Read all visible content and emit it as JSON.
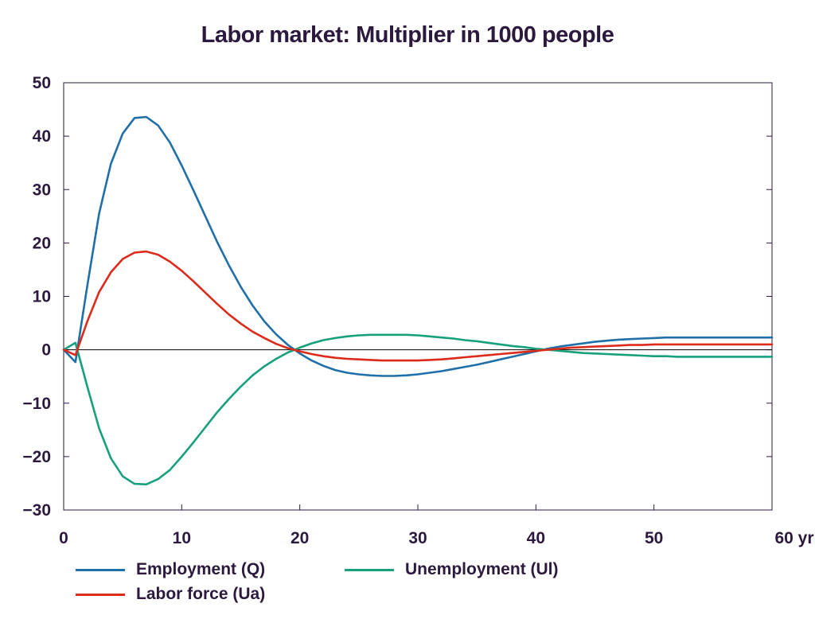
{
  "chart_data": {
    "type": "line",
    "title": "Labor market: Multiplier in 1000 people",
    "xlabel": "",
    "ylabel": "",
    "xlim": [
      0,
      60
    ],
    "ylim": [
      -30,
      50
    ],
    "x_ticks": [
      "0",
      "10",
      "20",
      "30",
      "40",
      "50",
      "60 yr"
    ],
    "y_ticks": [
      "50",
      "40",
      "30",
      "20",
      "10",
      "0",
      "-10",
      "-20",
      "-30"
    ],
    "legend_position": "bottom",
    "grid": false,
    "x": [
      0,
      1,
      2,
      3,
      4,
      5,
      6,
      7,
      8,
      9,
      10,
      11,
      12,
      13,
      14,
      15,
      16,
      17,
      18,
      19,
      20,
      21,
      22,
      23,
      24,
      25,
      26,
      27,
      28,
      29,
      30,
      31,
      32,
      33,
      34,
      35,
      36,
      37,
      38,
      39,
      40,
      41,
      42,
      43,
      44,
      45,
      46,
      47,
      48,
      49,
      50,
      51,
      52,
      53,
      54,
      55,
      56,
      57,
      58,
      59,
      60
    ],
    "series": [
      {
        "name": "Employment (Q)",
        "color": "#1f6fa8",
        "values": [
          0,
          -2.3,
          12,
          25.5,
          34.8,
          40.5,
          43.4,
          43.6,
          42,
          38.8,
          34.5,
          29.8,
          25,
          20.2,
          15.8,
          11.8,
          8.3,
          5.3,
          2.9,
          0.9,
          -0.7,
          -2,
          -3,
          -3.8,
          -4.3,
          -4.6,
          -4.8,
          -4.9,
          -4.9,
          -4.8,
          -4.6,
          -4.3,
          -4,
          -3.6,
          -3.2,
          -2.8,
          -2.3,
          -1.8,
          -1.3,
          -0.8,
          -0.3,
          0.2,
          0.6,
          0.9,
          1.2,
          1.5,
          1.7,
          1.9,
          2,
          2.1,
          2.2,
          2.3,
          2.3,
          2.3,
          2.3,
          2.3,
          2.3,
          2.3,
          2.3,
          2.3,
          2.3
        ]
      },
      {
        "name": "Unemployment (Ul)",
        "color": "#16a07c",
        "values": [
          0,
          1.3,
          -6.9,
          -14.7,
          -20.3,
          -23.7,
          -25.1,
          -25.2,
          -24.2,
          -22.5,
          -20,
          -17.3,
          -14.5,
          -11.7,
          -9.2,
          -6.9,
          -4.8,
          -3.1,
          -1.7,
          -0.5,
          0.4,
          1.2,
          1.8,
          2.2,
          2.5,
          2.7,
          2.8,
          2.8,
          2.8,
          2.8,
          2.7,
          2.5,
          2.3,
          2.1,
          1.8,
          1.6,
          1.3,
          1,
          0.7,
          0.5,
          0.2,
          0,
          -0.2,
          -0.4,
          -0.6,
          -0.7,
          -0.8,
          -0.9,
          -1,
          -1.1,
          -1.2,
          -1.2,
          -1.3,
          -1.3,
          -1.3,
          -1.3,
          -1.3,
          -1.3,
          -1.3,
          -1.3,
          -1.3
        ]
      },
      {
        "name": "Labor force (Ua)",
        "color": "#dd2b1b",
        "values": [
          0,
          -1,
          5.3,
          10.8,
          14.5,
          17,
          18.2,
          18.4,
          17.8,
          16.5,
          14.8,
          12.8,
          10.7,
          8.6,
          6.6,
          4.9,
          3.4,
          2.2,
          1.1,
          0.3,
          -0.3,
          -0.8,
          -1.2,
          -1.5,
          -1.7,
          -1.8,
          -1.9,
          -2,
          -2,
          -2,
          -2,
          -1.9,
          -1.8,
          -1.6,
          -1.4,
          -1.2,
          -1,
          -0.8,
          -0.6,
          -0.4,
          -0.2,
          0,
          0.2,
          0.4,
          0.5,
          0.6,
          0.7,
          0.8,
          0.9,
          0.9,
          1,
          1,
          1,
          1,
          1,
          1,
          1,
          1,
          1,
          1,
          1
        ]
      }
    ]
  }
}
